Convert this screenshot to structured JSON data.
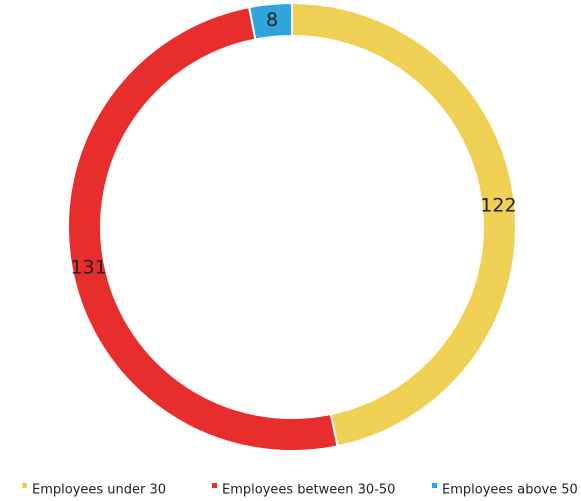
{
  "chart_data": {
    "type": "donut",
    "categories": [
      "Employees under 30",
      "Employees between 30-50",
      "Employees above 50"
    ],
    "values": [
      122,
      131,
      8
    ],
    "colors": [
      "#f0cf55",
      "#e82d2d",
      "#2ea6dd"
    ],
    "legend": "bottom"
  }
}
